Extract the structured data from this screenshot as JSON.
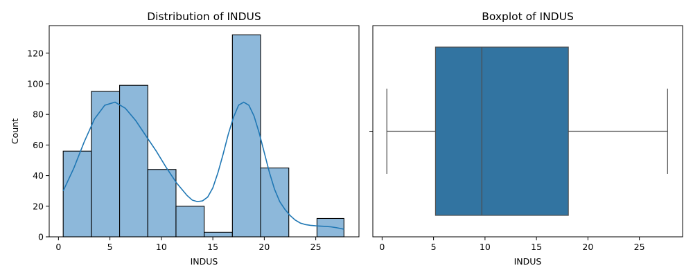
{
  "chart_data": [
    {
      "type": "histogram",
      "title": "Distribution of INDUS",
      "xlabel": "INDUS",
      "ylabel": "Count",
      "xlim": [
        -0.9,
        29.2
      ],
      "ylim": [
        0,
        138
      ],
      "xticks": [
        0,
        5,
        10,
        15,
        20,
        25
      ],
      "yticks": [
        0,
        20,
        40,
        60,
        80,
        100,
        120
      ],
      "bin_edges": [
        0.46,
        3.2,
        5.94,
        8.68,
        11.42,
        14.16,
        16.9,
        19.64,
        22.38,
        25.12,
        27.74
      ],
      "counts": [
        56,
        95,
        99,
        44,
        20,
        3,
        132,
        45,
        0,
        12
      ],
      "bar_color": "#8db8da",
      "kde_color": "#1f77b4",
      "kde": {
        "x": [
          0.46,
          1.5,
          2.5,
          3.5,
          4.5,
          5.5,
          6.5,
          7.5,
          8.5,
          9.5,
          10.5,
          11.5,
          12.5,
          13.0,
          13.5,
          14.0,
          14.5,
          15.0,
          15.5,
          16.0,
          16.5,
          17.0,
          17.5,
          18.0,
          18.5,
          19.0,
          19.5,
          20.0,
          20.5,
          21.0,
          21.5,
          22.0,
          22.5,
          23.0,
          23.5,
          24.0,
          24.5,
          25.0,
          25.5,
          26.0,
          26.5,
          27.0,
          27.74
        ],
        "y": [
          30,
          45,
          62,
          77,
          86,
          88,
          84,
          76,
          66,
          56,
          45,
          35,
          27,
          24,
          23,
          23.5,
          26,
          32,
          42,
          54,
          67,
          78,
          86,
          88,
          86,
          79,
          68,
          55,
          42,
          31,
          23,
          18,
          14,
          11,
          9,
          8,
          7.5,
          7.2,
          7,
          6.8,
          6.5,
          6,
          5
        ]
      }
    },
    {
      "type": "boxplot",
      "title": "Boxplot of INDUS",
      "xlabel": "INDUS",
      "xlim": [
        -0.9,
        29.2
      ],
      "xticks": [
        0,
        5,
        10,
        15,
        20,
        25
      ],
      "min": 0.46,
      "q1": 5.19,
      "median": 9.69,
      "q3": 18.1,
      "max": 27.74,
      "box_color": "#3274a1"
    }
  ]
}
